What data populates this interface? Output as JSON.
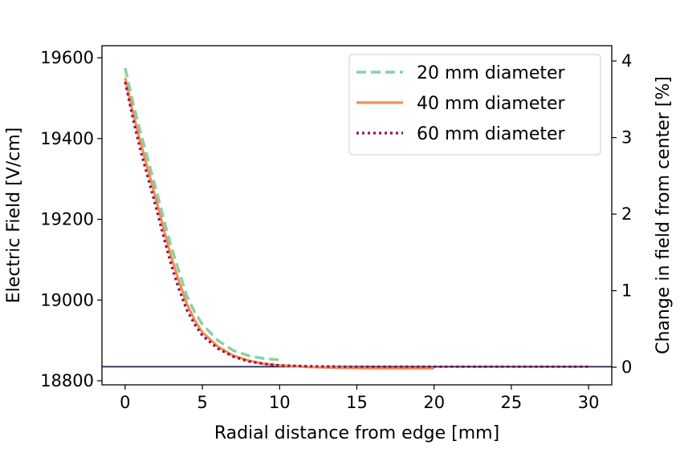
{
  "chart_data": {
    "type": "line",
    "xlabel": "Radial distance from edge [mm]",
    "ylabel": "Electric Field [V/cm]",
    "y2label": "Change in field from center [%]",
    "xlim": [
      -1.5,
      31.5
    ],
    "ylim": [
      18790,
      19630
    ],
    "y2lim": [
      -0.23,
      4.2
    ],
    "x_ticks": [
      0,
      5,
      10,
      15,
      20,
      25,
      30
    ],
    "y_ticks": [
      18800,
      19000,
      19200,
      19400,
      19600
    ],
    "y2_ticks": [
      0,
      1,
      2,
      3,
      4
    ],
    "reference_line": {
      "y": 18835,
      "color": "#1f1f5e"
    },
    "legend": {
      "location": "upper right"
    },
    "grid": false,
    "series": [
      {
        "name": "20 mm diameter",
        "color": "#88d1a5",
        "style": "dashed",
        "x": [
          0,
          0.5,
          1,
          1.5,
          2,
          2.5,
          3,
          3.5,
          4,
          4.5,
          5,
          6,
          7,
          8,
          9,
          10
        ],
        "y": [
          19575,
          19490,
          19415,
          19345,
          19275,
          19200,
          19130,
          19070,
          19010,
          18970,
          18940,
          18900,
          18875,
          18862,
          18855,
          18852
        ]
      },
      {
        "name": "40 mm diameter",
        "color": "#f28e52",
        "style": "solid",
        "x": [
          0,
          0.5,
          1,
          1.5,
          2,
          2.5,
          3,
          3.5,
          4,
          4.5,
          5,
          6,
          7,
          8,
          9,
          10,
          12,
          14,
          16,
          18,
          20
        ],
        "y": [
          19550,
          19465,
          19390,
          19320,
          19250,
          19175,
          19105,
          19045,
          18990,
          18950,
          18920,
          18885,
          18862,
          18850,
          18842,
          18838,
          18834,
          18832,
          18831,
          18831,
          18831
        ]
      },
      {
        "name": "60 mm diameter",
        "color": "#9a0a52",
        "style": "dotted",
        "x": [
          0,
          0.5,
          1,
          1.5,
          2,
          2.5,
          3,
          3.5,
          4,
          4.5,
          5,
          6,
          7,
          8,
          9,
          10,
          12,
          14,
          16,
          18,
          20,
          22,
          24,
          26,
          28,
          30
        ],
        "y": [
          19540,
          19450,
          19370,
          19300,
          19230,
          19155,
          19085,
          19025,
          18975,
          18940,
          18912,
          18880,
          18860,
          18848,
          18842,
          18838,
          18836,
          18835,
          18835,
          18835,
          18835,
          18835,
          18835,
          18835,
          18835,
          18835
        ]
      }
    ]
  }
}
